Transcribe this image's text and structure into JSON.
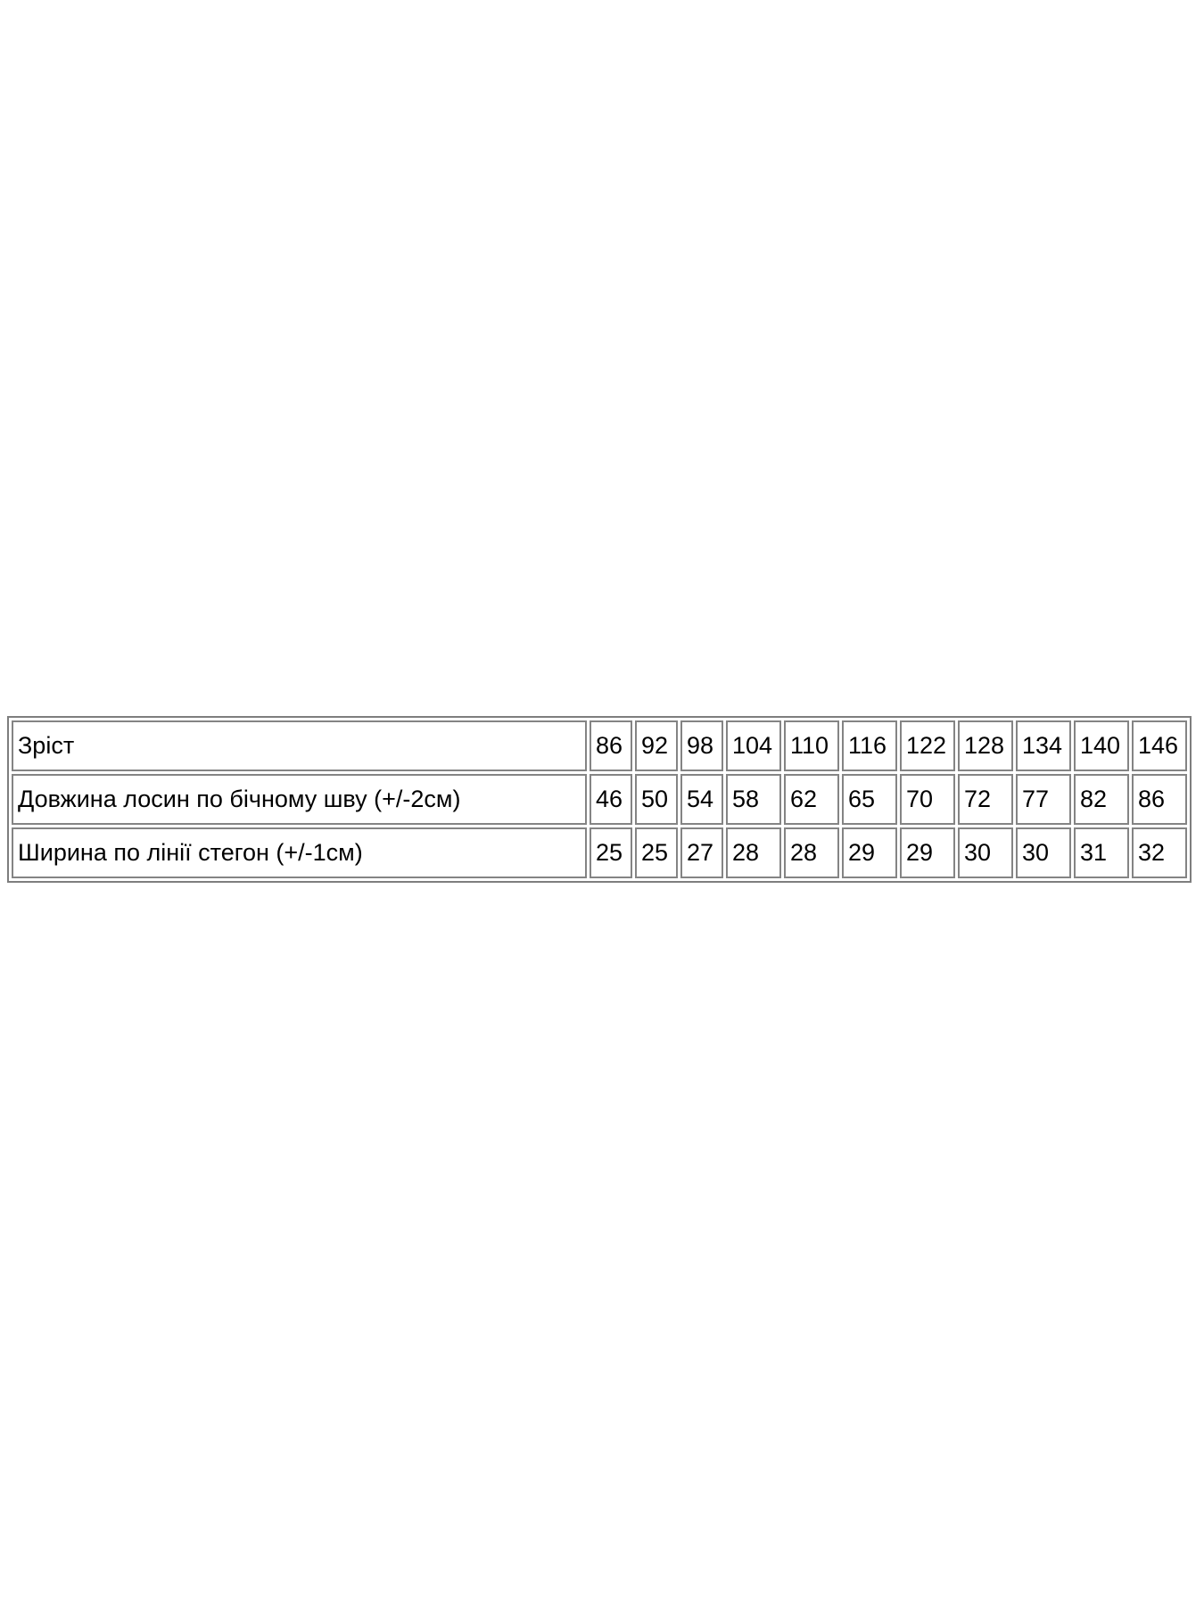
{
  "colors": {
    "background": "#ffffff",
    "table_border": "#7e7e7e",
    "cell_border": "#848484",
    "text": "#000000"
  },
  "chart_data": {
    "type": "table",
    "title": "",
    "rows": [
      {
        "label": "Зріст",
        "values": [
          "86",
          "92",
          "98",
          "104",
          "110",
          "116",
          "122",
          "128",
          "134",
          "140",
          "146"
        ]
      },
      {
        "label": "Довжина лосин по бічному шву (+/-2см)",
        "values": [
          "46",
          "50",
          "54",
          "58",
          "62",
          "65",
          "70",
          "72",
          "77",
          "82",
          "86"
        ]
      },
      {
        "label": "Ширина по лінії стегон (+/-1см)",
        "values": [
          "25",
          "25",
          "27",
          "28",
          "28",
          "29",
          "29",
          "30",
          "30",
          "31",
          "32"
        ]
      }
    ]
  }
}
